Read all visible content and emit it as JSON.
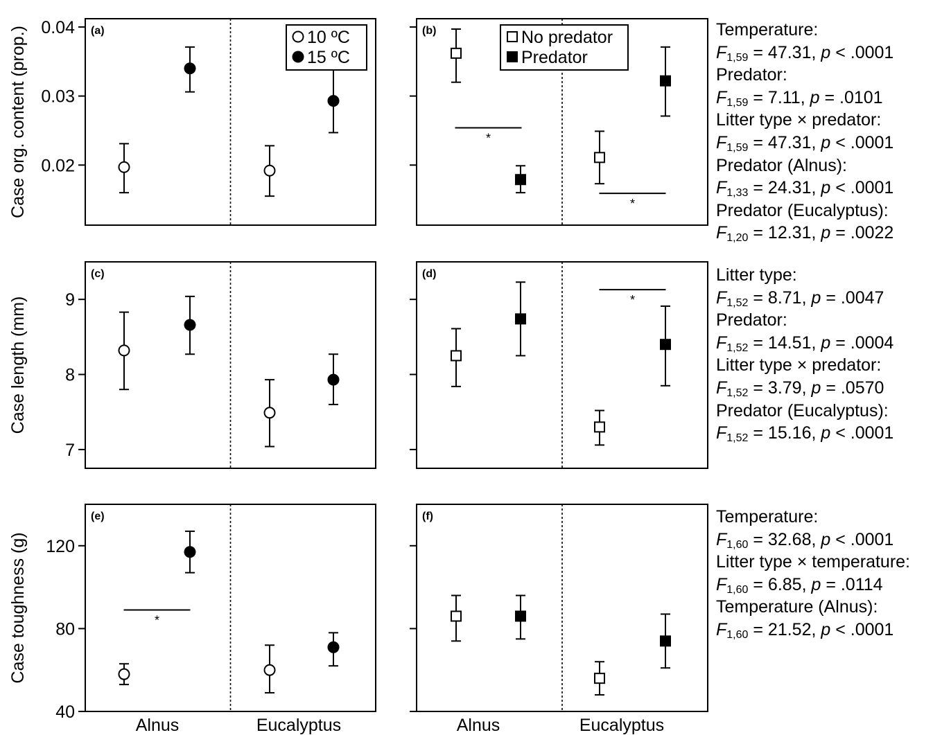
{
  "figure": {
    "x_categories": [
      "Alnus",
      "Eucalyptus"
    ],
    "legend_temperature": [
      "10 ºC",
      "15 ºC"
    ],
    "legend_predator": [
      "No predator",
      "Predator"
    ],
    "significance_marker": "*"
  },
  "chart_data": [
    {
      "id": "a",
      "panel_label": "(a)",
      "type": "scatter",
      "ylabel": "Case org. content (prop.)",
      "ylim": [
        0.0113,
        0.0412
      ],
      "yticks": [
        0.02,
        0.03,
        0.04
      ],
      "ytick_labels": [
        "0.02",
        "0.03",
        "0.04"
      ],
      "categories": [
        "Alnus",
        "Eucalyptus"
      ],
      "series": [
        {
          "name": "10 ºC",
          "marker": "circle-open",
          "points": [
            {
              "category": "Alnus",
              "y": 0.0197,
              "lower": 0.016,
              "upper": 0.0231
            },
            {
              "category": "Eucalyptus",
              "y": 0.0192,
              "lower": 0.0155,
              "upper": 0.0228
            }
          ]
        },
        {
          "name": "15 ºC",
          "marker": "circle-filled",
          "points": [
            {
              "category": "Alnus",
              "y": 0.034,
              "lower": 0.0306,
              "upper": 0.0371
            },
            {
              "category": "Eucalyptus",
              "y": 0.0293,
              "lower": 0.0247,
              "upper": 0.034
            }
          ]
        }
      ],
      "legend": "top-right",
      "significance": []
    },
    {
      "id": "b",
      "panel_label": "(b)",
      "type": "scatter",
      "ylabel": "",
      "ylim": [
        0.0113,
        0.0412
      ],
      "yticks": [
        0.02,
        0.03,
        0.04
      ],
      "ytick_labels": [
        "",
        "",
        ""
      ],
      "categories": [
        "Alnus",
        "Eucalyptus"
      ],
      "series": [
        {
          "name": "No predator",
          "marker": "square-open",
          "points": [
            {
              "category": "Alnus",
              "y": 0.0362,
              "lower": 0.032,
              "upper": 0.0397
            },
            {
              "category": "Eucalyptus",
              "y": 0.0211,
              "lower": 0.0173,
              "upper": 0.0249
            }
          ]
        },
        {
          "name": "Predator",
          "marker": "square-filled",
          "points": [
            {
              "category": "Alnus",
              "y": 0.0179,
              "lower": 0.016,
              "upper": 0.0199
            },
            {
              "category": "Eucalyptus",
              "y": 0.0322,
              "lower": 0.0271,
              "upper": 0.0371
            }
          ]
        }
      ],
      "legend": "top-left",
      "significance": [
        {
          "category": "Alnus",
          "y": 0.0254,
          "label": "*"
        },
        {
          "category": "Eucalyptus",
          "y": 0.0159,
          "label": "*"
        }
      ]
    },
    {
      "id": "c",
      "panel_label": "(c)",
      "type": "scatter",
      "ylabel": "Case length (mm)",
      "ylim": [
        6.75,
        9.5
      ],
      "yticks": [
        7,
        8,
        9
      ],
      "ytick_labels": [
        "7",
        "8",
        "9"
      ],
      "categories": [
        "Alnus",
        "Eucalyptus"
      ],
      "series": [
        {
          "name": "10 ºC",
          "marker": "circle-open",
          "points": [
            {
              "category": "Alnus",
              "y": 8.32,
              "lower": 7.8,
              "upper": 8.83
            },
            {
              "category": "Eucalyptus",
              "y": 7.49,
              "lower": 7.04,
              "upper": 7.93
            }
          ]
        },
        {
          "name": "15 ºC",
          "marker": "circle-filled",
          "points": [
            {
              "category": "Alnus",
              "y": 8.66,
              "lower": 8.27,
              "upper": 9.04
            },
            {
              "category": "Eucalyptus",
              "y": 7.93,
              "lower": 7.6,
              "upper": 8.27
            }
          ]
        }
      ],
      "legend": "none",
      "significance": []
    },
    {
      "id": "d",
      "panel_label": "(d)",
      "type": "scatter",
      "ylabel": "",
      "ylim": [
        6.75,
        9.5
      ],
      "yticks": [
        7,
        8,
        9
      ],
      "ytick_labels": [
        "",
        "",
        ""
      ],
      "categories": [
        "Alnus",
        "Eucalyptus"
      ],
      "series": [
        {
          "name": "No predator",
          "marker": "square-open",
          "points": [
            {
              "category": "Alnus",
              "y": 8.25,
              "lower": 7.84,
              "upper": 8.61
            },
            {
              "category": "Eucalyptus",
              "y": 7.3,
              "lower": 7.06,
              "upper": 7.52
            }
          ]
        },
        {
          "name": "Predator",
          "marker": "square-filled",
          "points": [
            {
              "category": "Alnus",
              "y": 8.74,
              "lower": 8.25,
              "upper": 9.23
            },
            {
              "category": "Eucalyptus",
              "y": 8.4,
              "lower": 7.85,
              "upper": 8.91
            }
          ]
        }
      ],
      "legend": "none",
      "significance": [
        {
          "category": "Eucalyptus",
          "y": 9.13,
          "label": "*"
        }
      ]
    },
    {
      "id": "e",
      "panel_label": "(e)",
      "type": "scatter",
      "ylabel": "Case toughness (g)",
      "ylim": [
        40,
        140
      ],
      "yticks": [
        40,
        80,
        120
      ],
      "ytick_labels": [
        "40",
        "80",
        "120"
      ],
      "categories": [
        "Alnus",
        "Eucalyptus"
      ],
      "series": [
        {
          "name": "10 ºC",
          "marker": "circle-open",
          "points": [
            {
              "category": "Alnus",
              "y": 58,
              "lower": 53,
              "upper": 63
            },
            {
              "category": "Eucalyptus",
              "y": 60,
              "lower": 49,
              "upper": 72
            }
          ]
        },
        {
          "name": "15 ºC",
          "marker": "circle-filled",
          "points": [
            {
              "category": "Alnus",
              "y": 117,
              "lower": 107,
              "upper": 127
            },
            {
              "category": "Eucalyptus",
              "y": 71,
              "lower": 62,
              "upper": 78
            }
          ]
        }
      ],
      "legend": "none",
      "significance": [
        {
          "category": "Alnus",
          "y": 89,
          "label": "*"
        }
      ]
    },
    {
      "id": "f",
      "panel_label": "(f)",
      "type": "scatter",
      "ylabel": "",
      "ylim": [
        40,
        140
      ],
      "yticks": [
        40,
        80,
        120
      ],
      "ytick_labels": [
        "",
        "",
        ""
      ],
      "categories": [
        "Alnus",
        "Eucalyptus"
      ],
      "series": [
        {
          "name": "No predator",
          "marker": "square-open",
          "points": [
            {
              "category": "Alnus",
              "y": 86,
              "lower": 74,
              "upper": 96
            },
            {
              "category": "Eucalyptus",
              "y": 56,
              "lower": 48,
              "upper": 64
            }
          ]
        },
        {
          "name": "Predator",
          "marker": "square-filled",
          "points": [
            {
              "category": "Alnus",
              "y": 86,
              "lower": 75,
              "upper": 96
            },
            {
              "category": "Eucalyptus",
              "y": 74,
              "lower": 61,
              "upper": 87
            }
          ]
        }
      ],
      "legend": "none",
      "significance": []
    }
  ],
  "stats": [
    {
      "panel": "b",
      "lines": [
        [
          {
            "t": "Temperature:"
          }
        ],
        [
          {
            "t": "F",
            "i": true
          },
          {
            "t": "1,59",
            "sub": true
          },
          {
            "t": " = 47.31, "
          },
          {
            "t": "p",
            "i": true
          },
          {
            "t": " < .0001"
          }
        ],
        [
          {
            "t": "Predator:"
          }
        ],
        [
          {
            "t": "F",
            "i": true
          },
          {
            "t": "1,59",
            "sub": true
          },
          {
            "t": " = 7.11, "
          },
          {
            "t": "p",
            "i": true
          },
          {
            "t": " = .0101"
          }
        ],
        [
          {
            "t": "Litter type × predator:"
          }
        ],
        [
          {
            "t": "F",
            "i": true
          },
          {
            "t": "1,59",
            "sub": true
          },
          {
            "t": " = 47.31, "
          },
          {
            "t": "p",
            "i": true
          },
          {
            "t": " < .0001"
          }
        ],
        [
          {
            "t": "Predator (Alnus):"
          }
        ],
        [
          {
            "t": "F",
            "i": true
          },
          {
            "t": "1,33",
            "sub": true
          },
          {
            "t": " = 24.31, "
          },
          {
            "t": "p",
            "i": true
          },
          {
            "t": " < .0001"
          }
        ],
        [
          {
            "t": "Predator (Eucalyptus):"
          }
        ],
        [
          {
            "t": "F",
            "i": true
          },
          {
            "t": "1,20",
            "sub": true
          },
          {
            "t": " = 12.31, "
          },
          {
            "t": "p",
            "i": true
          },
          {
            "t": " = .0022"
          }
        ]
      ]
    },
    {
      "panel": "d",
      "lines": [
        [
          {
            "t": "Litter type:"
          }
        ],
        [
          {
            "t": "F",
            "i": true
          },
          {
            "t": "1,52",
            "sub": true
          },
          {
            "t": " = 8.71, "
          },
          {
            "t": "p",
            "i": true
          },
          {
            "t": " = .0047"
          }
        ],
        [
          {
            "t": "Predator:"
          }
        ],
        [
          {
            "t": "F",
            "i": true
          },
          {
            "t": "1,52",
            "sub": true
          },
          {
            "t": " = 14.51, "
          },
          {
            "t": "p",
            "i": true
          },
          {
            "t": " = .0004"
          }
        ],
        [
          {
            "t": "Litter type × predator:"
          }
        ],
        [
          {
            "t": "F",
            "i": true
          },
          {
            "t": "1,52",
            "sub": true
          },
          {
            "t": " = 3.79, "
          },
          {
            "t": "p",
            "i": true
          },
          {
            "t": " = .0570"
          }
        ],
        [
          {
            "t": "Predator (Eucalyptus):"
          }
        ],
        [
          {
            "t": "F",
            "i": true
          },
          {
            "t": "1,52",
            "sub": true
          },
          {
            "t": " = 15.16, "
          },
          {
            "t": "p",
            "i": true
          },
          {
            "t": " < .0001"
          }
        ]
      ]
    },
    {
      "panel": "f",
      "lines": [
        [
          {
            "t": "Temperature:"
          }
        ],
        [
          {
            "t": "F",
            "i": true
          },
          {
            "t": "1,60",
            "sub": true
          },
          {
            "t": " = 32.68, "
          },
          {
            "t": "p",
            "i": true
          },
          {
            "t": " < .0001"
          }
        ],
        [
          {
            "t": "Litter type × temperature:"
          }
        ],
        [
          {
            "t": "F",
            "i": true
          },
          {
            "t": "1,60",
            "sub": true
          },
          {
            "t": " = 6.85, "
          },
          {
            "t": "p",
            "i": true
          },
          {
            "t": " = .0114"
          }
        ],
        [
          {
            "t": "Temperature (Alnus):"
          }
        ],
        [
          {
            "t": "F",
            "i": true
          },
          {
            "t": "1,60",
            "sub": true
          },
          {
            "t": " = 21.52, "
          },
          {
            "t": "p",
            "i": true
          },
          {
            "t": " < .0001"
          }
        ]
      ]
    }
  ]
}
